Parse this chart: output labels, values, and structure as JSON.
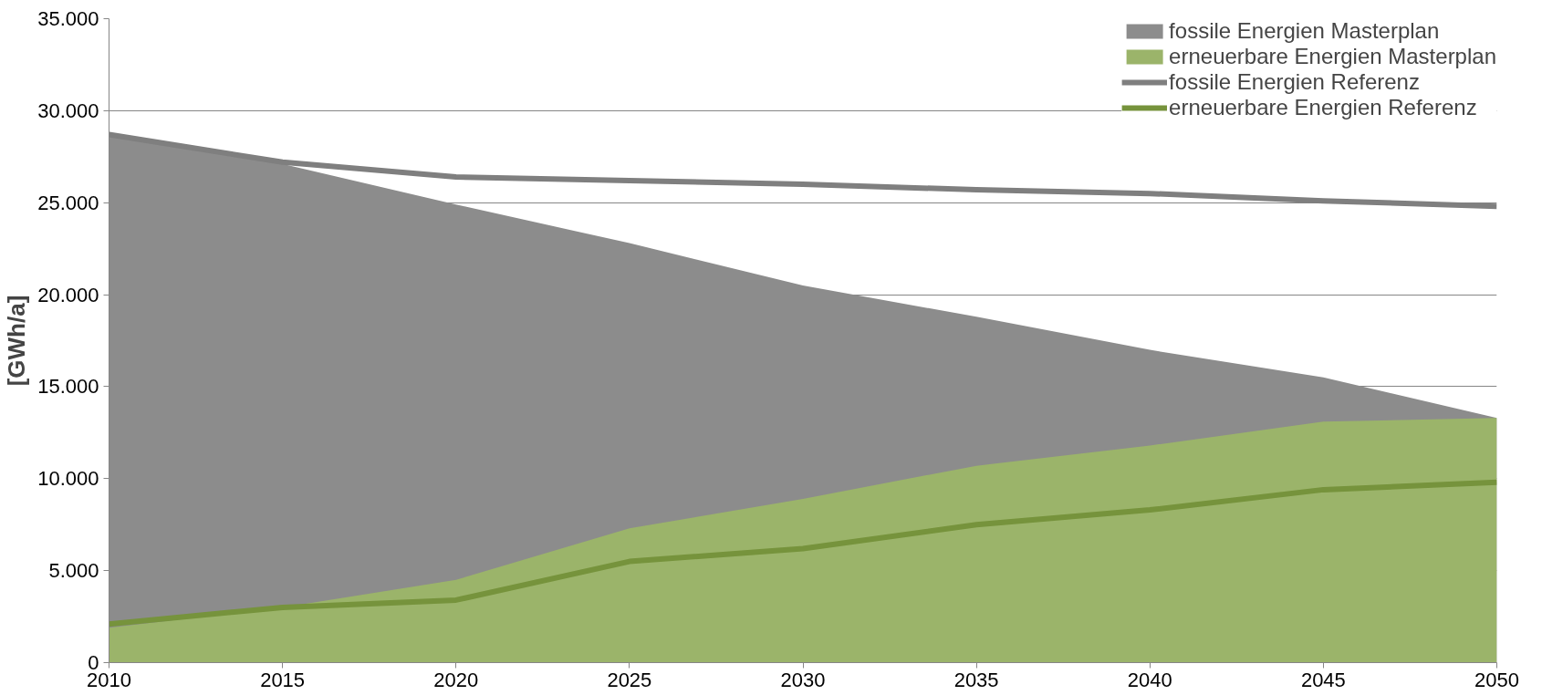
{
  "chart_data": {
    "type": "area",
    "ylabel": "[GWh/a]",
    "x": [
      2010,
      2015,
      2020,
      2025,
      2030,
      2035,
      2040,
      2045,
      2050
    ],
    "series": [
      {
        "name": "fossile Energien Masterplan",
        "color": "#8c8c8c",
        "values": [
          28600,
          27100,
          24900,
          22800,
          20500,
          18800,
          17000,
          15500,
          13300
        ]
      },
      {
        "name": "erneuerbare Energien Masterplan",
        "color": "#9bb46a",
        "values": [
          1900,
          3000,
          4500,
          7300,
          8900,
          10700,
          11800,
          13100,
          13300
        ]
      },
      {
        "name": "fossile Energien Referenz",
        "type": "line",
        "color": "#7f7f7f",
        "values": [
          28700,
          27200,
          26400,
          26200,
          26000,
          25700,
          25500,
          25100,
          24800
        ]
      },
      {
        "name": "erneuerbare Energien Referenz",
        "type": "line",
        "color": "#76933c",
        "values": [
          2100,
          3000,
          3400,
          5500,
          6200,
          7500,
          8300,
          9400,
          9800
        ]
      }
    ],
    "xlim": [
      2010,
      2050
    ],
    "xticks": [
      2010,
      2015,
      2020,
      2025,
      2030,
      2035,
      2040,
      2045,
      2050
    ],
    "ylim": [
      0,
      35000
    ],
    "yticks": [
      0,
      {
        "value": 5000,
        "label": "5.000"
      },
      {
        "value": 10000,
        "label": "10.000"
      },
      {
        "value": 15000,
        "label": "15.000"
      },
      {
        "value": 20000,
        "label": "20.000"
      },
      {
        "value": 25000,
        "label": "25.000"
      },
      {
        "value": 30000,
        "label": "30.000"
      },
      {
        "value": 35000,
        "label": "35.000"
      }
    ],
    "grid": "y",
    "legend": "top right"
  }
}
